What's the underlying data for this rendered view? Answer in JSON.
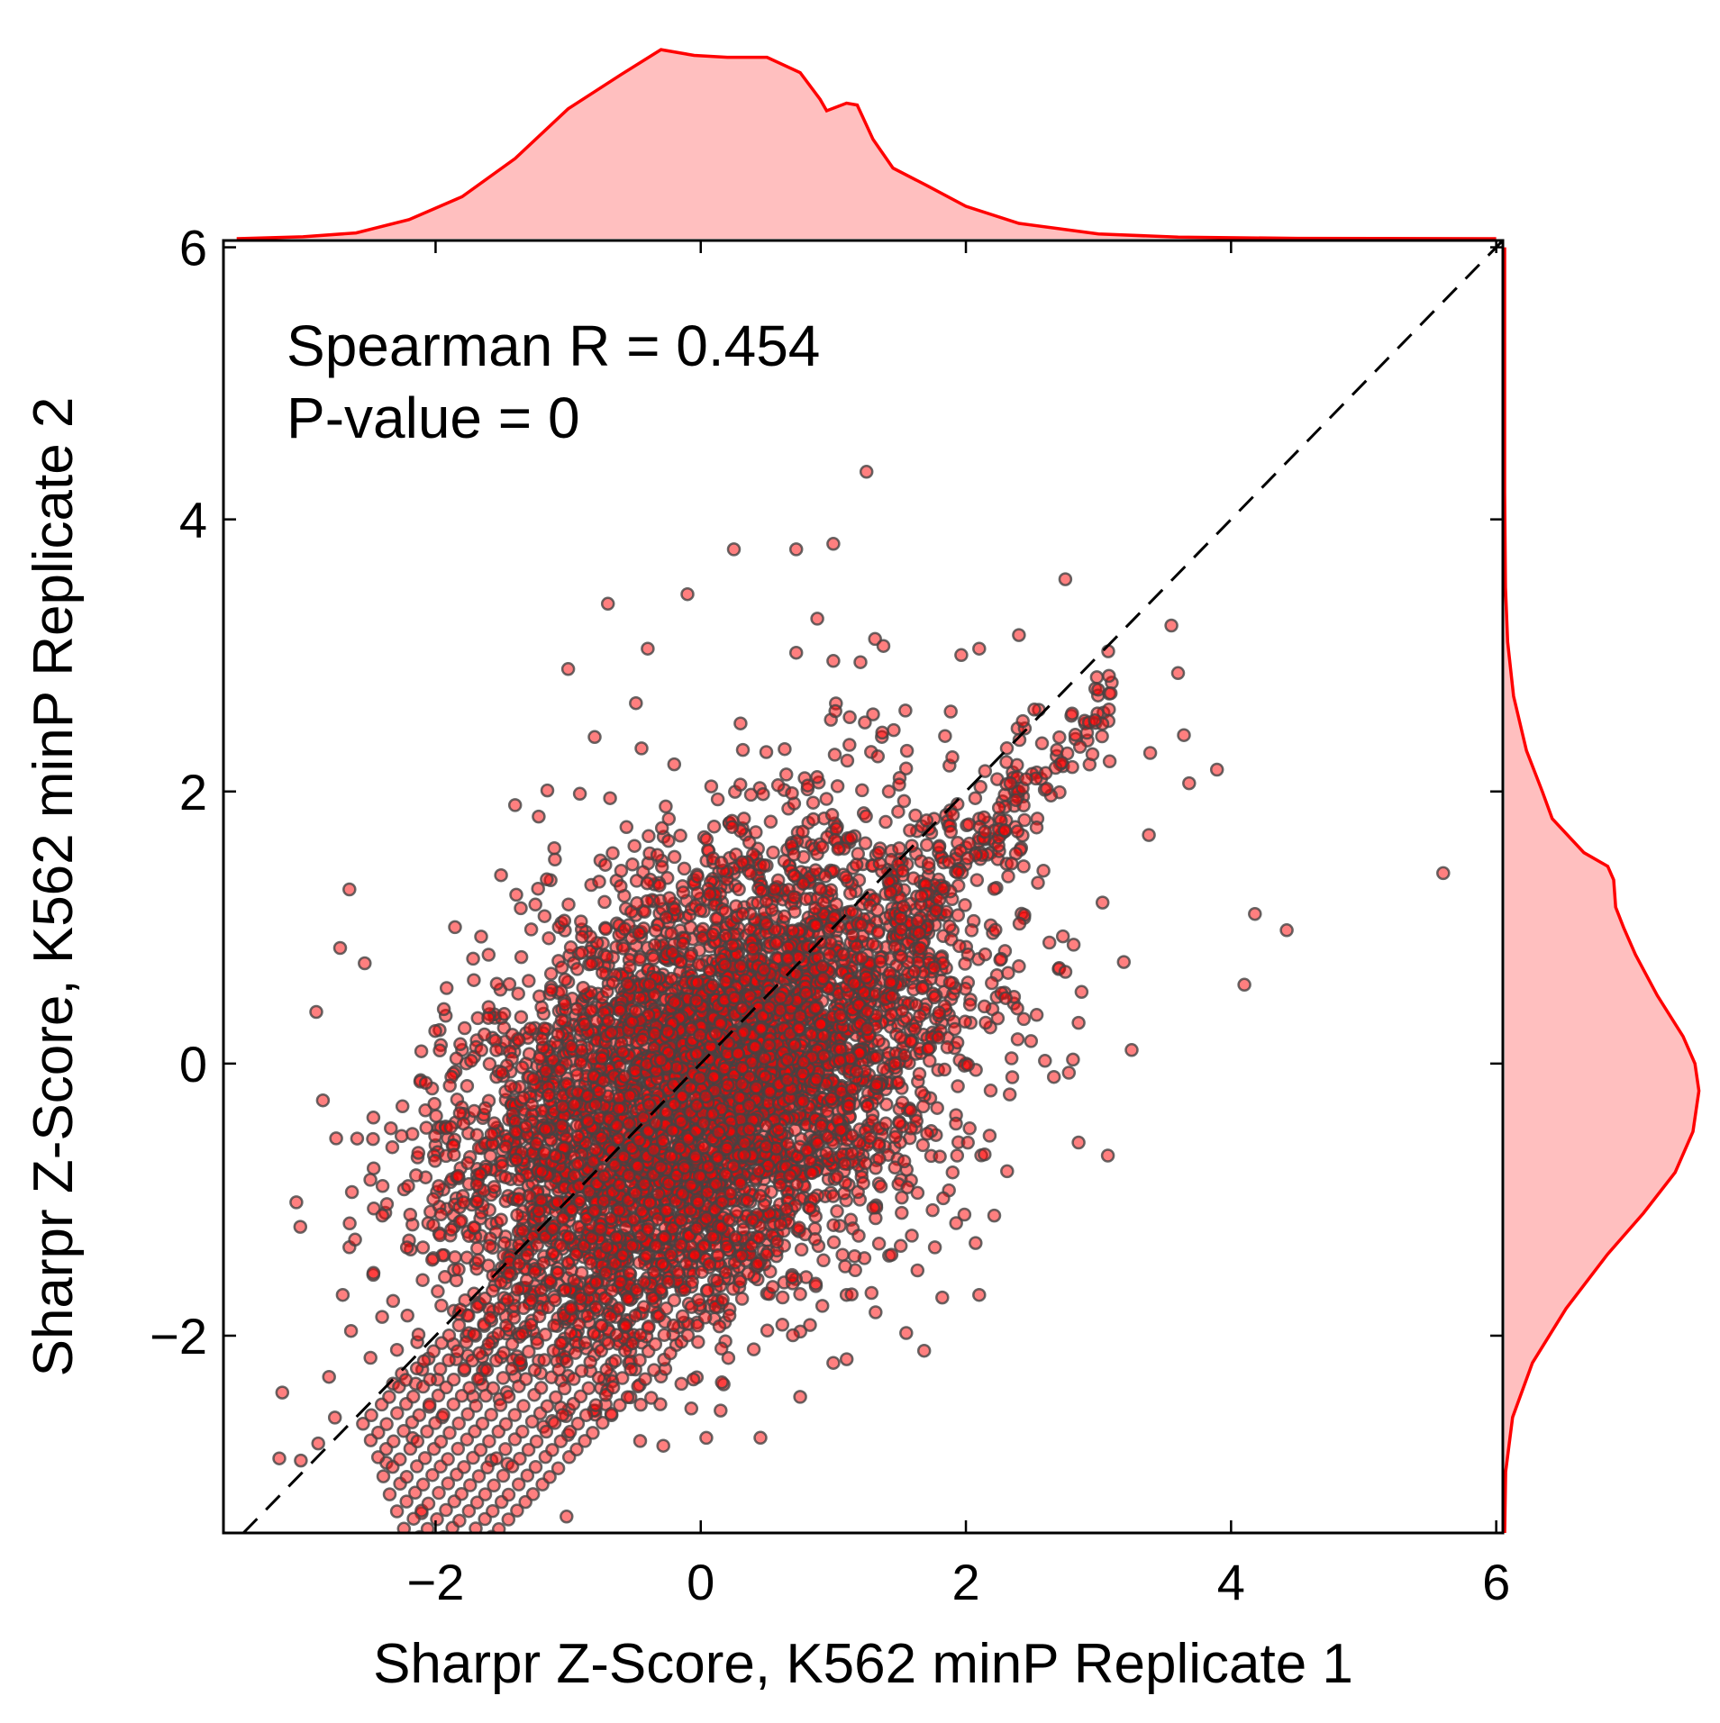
{
  "chart_data": {
    "type": "scatter",
    "title": "",
    "xlabel": "Sharpr Z-Score, K562 minP Replicate 1",
    "ylabel": "Sharpr Z-Score, K562 minP Replicate 2",
    "xlim": [
      -3.6,
      6.05
    ],
    "ylim": [
      -3.45,
      6.05
    ],
    "x_ticks": [
      -2,
      0,
      2,
      4,
      6
    ],
    "y_ticks": [
      -2,
      0,
      2,
      4,
      6
    ],
    "x_tick_labels": [
      "−2",
      "0",
      "2",
      "4",
      "6"
    ],
    "y_tick_labels": [
      "−2",
      "0",
      "2",
      "4",
      "6"
    ],
    "annotations": [
      "Spearman R = 0.454",
      "P-value = 0"
    ],
    "grid": false,
    "marker_color": "#ff0000",
    "marker_edge_color": "#444444",
    "kde_fill_color": "#ffbfbf",
    "kde_line_color": "#ff0000",
    "reference_line": {
      "type": "identity",
      "style": "dashed",
      "color": "#000000"
    },
    "points": [
      [
        1.25,
        4.35
      ],
      [
        0.25,
        3.78
      ],
      [
        0.72,
        3.78
      ],
      [
        1.0,
        3.82
      ],
      [
        2.75,
        3.56
      ],
      [
        -0.1,
        3.45
      ],
      [
        -0.7,
        3.38
      ],
      [
        3.55,
        3.22
      ],
      [
        3.6,
        2.87
      ],
      [
        2.1,
        3.05
      ],
      [
        2.4,
        3.15
      ],
      [
        -1.0,
        2.9
      ],
      [
        -0.4,
        3.05
      ],
      [
        0.72,
        3.02
      ],
      [
        1.0,
        2.96
      ],
      [
        4.1,
        0.58
      ],
      [
        4.18,
        1.1
      ],
      [
        4.42,
        0.98
      ],
      [
        5.6,
        1.4
      ],
      [
        3.38,
        1.68
      ],
      [
        -2.65,
        1.28
      ],
      [
        -2.9,
        0.38
      ],
      [
        -2.85,
        -0.27
      ],
      [
        -3.05,
        -1.02
      ],
      [
        -3.02,
        -1.2
      ],
      [
        -2.72,
        0.85
      ],
      [
        -2.75,
        -0.55
      ],
      [
        -2.65,
        -1.35
      ],
      [
        -2.7,
        -1.7
      ],
      [
        -2.1,
        -2.25
      ],
      [
        -1.95,
        -2.6
      ],
      [
        -1.4,
        -2.3
      ],
      [
        0.15,
        -2.55
      ],
      [
        0.45,
        -2.75
      ],
      [
        0.75,
        -2.45
      ],
      [
        1.55,
        -1.98
      ],
      [
        2.1,
        -1.7
      ],
      [
        2.85,
        -0.58
      ],
      [
        3.25,
        0.1
      ],
      [
        2.55,
        2.6
      ],
      [
        2.9,
        2.5
      ],
      [
        3.1,
        2.8
      ],
      [
        2.35,
        -0.1
      ],
      [
        2.85,
        0.3
      ],
      [
        -0.2,
        2.2
      ],
      [
        -0.8,
        2.4
      ],
      [
        0.3,
        2.5
      ],
      [
        1.5,
        2.1
      ],
      [
        -1.4,
        1.9
      ],
      [
        -1.1,
        1.5
      ],
      [
        -0.5,
        1.6
      ],
      [
        0.2,
        1.3
      ],
      [
        0.8,
        1.4
      ],
      [
        1.3,
        1.2
      ],
      [
        1.8,
        1.6
      ],
      [
        2.1,
        1.8
      ],
      [
        2.4,
        2.0
      ],
      [
        -1.6,
        0.8
      ],
      [
        -1.0,
        0.6
      ],
      [
        -0.3,
        0.9
      ],
      [
        0.4,
        0.7
      ],
      [
        1.0,
        0.5
      ],
      [
        1.6,
        0.9
      ],
      [
        2.2,
        0.4
      ],
      [
        -1.8,
        0.1
      ],
      [
        -1.2,
        -0.2
      ],
      [
        -0.6,
        0.2
      ],
      [
        0.1,
        -0.1
      ],
      [
        0.7,
        0.1
      ],
      [
        1.4,
        -0.3
      ],
      [
        2.0,
        0.0
      ],
      [
        -2.0,
        -0.6
      ],
      [
        -1.3,
        -0.9
      ],
      [
        -0.7,
        -0.5
      ],
      [
        0.0,
        -0.8
      ],
      [
        0.6,
        -0.6
      ],
      [
        1.2,
        -1.0
      ],
      [
        1.9,
        -0.8
      ],
      [
        -2.2,
        -1.3
      ],
      [
        -1.5,
        -1.5
      ],
      [
        -0.9,
        -1.2
      ],
      [
        -0.2,
        -1.6
      ],
      [
        0.5,
        -1.3
      ],
      [
        1.1,
        -1.7
      ],
      [
        -1.7,
        -2.0
      ],
      [
        -1.0,
        -2.1
      ],
      [
        -0.3,
        -2.3
      ],
      [
        0.4,
        -2.1
      ],
      [
        1.0,
        -2.2
      ],
      [
        -2.4,
        -0.9
      ]
    ],
    "x_kde": [
      [
        -3.5,
        0.0
      ],
      [
        -3.0,
        0.01
      ],
      [
        -2.6,
        0.03
      ],
      [
        -2.2,
        0.1
      ],
      [
        -1.8,
        0.22
      ],
      [
        -1.4,
        0.42
      ],
      [
        -1.0,
        0.68
      ],
      [
        -0.6,
        0.86
      ],
      [
        -0.3,
        0.99
      ],
      [
        -0.05,
        0.96
      ],
      [
        0.2,
        0.95
      ],
      [
        0.5,
        0.95
      ],
      [
        0.75,
        0.87
      ],
      [
        0.9,
        0.73
      ],
      [
        0.95,
        0.67
      ],
      [
        1.1,
        0.71
      ],
      [
        1.18,
        0.7
      ],
      [
        1.3,
        0.52
      ],
      [
        1.45,
        0.37
      ],
      [
        1.7,
        0.28
      ],
      [
        2.0,
        0.17
      ],
      [
        2.4,
        0.08
      ],
      [
        3.0,
        0.025
      ],
      [
        3.6,
        0.008
      ],
      [
        4.5,
        0.002
      ],
      [
        6.0,
        0.0
      ]
    ],
    "y_kde": [
      [
        -3.45,
        0.0
      ],
      [
        -3.0,
        0.005
      ],
      [
        -2.6,
        0.04
      ],
      [
        -2.2,
        0.14
      ],
      [
        -1.8,
        0.31
      ],
      [
        -1.4,
        0.52
      ],
      [
        -1.1,
        0.7
      ],
      [
        -0.8,
        0.86
      ],
      [
        -0.5,
        0.95
      ],
      [
        -0.2,
        0.98
      ],
      [
        0.0,
        0.96
      ],
      [
        0.2,
        0.9
      ],
      [
        0.5,
        0.77
      ],
      [
        0.8,
        0.66
      ],
      [
        1.0,
        0.6
      ],
      [
        1.15,
        0.56
      ],
      [
        1.35,
        0.55
      ],
      [
        1.45,
        0.52
      ],
      [
        1.55,
        0.4
      ],
      [
        1.8,
        0.24
      ],
      [
        2.0,
        0.19
      ],
      [
        2.3,
        0.11
      ],
      [
        2.7,
        0.045
      ],
      [
        3.1,
        0.015
      ],
      [
        3.5,
        0.004
      ],
      [
        4.2,
        0.0
      ],
      [
        6.0,
        0.0
      ]
    ]
  }
}
